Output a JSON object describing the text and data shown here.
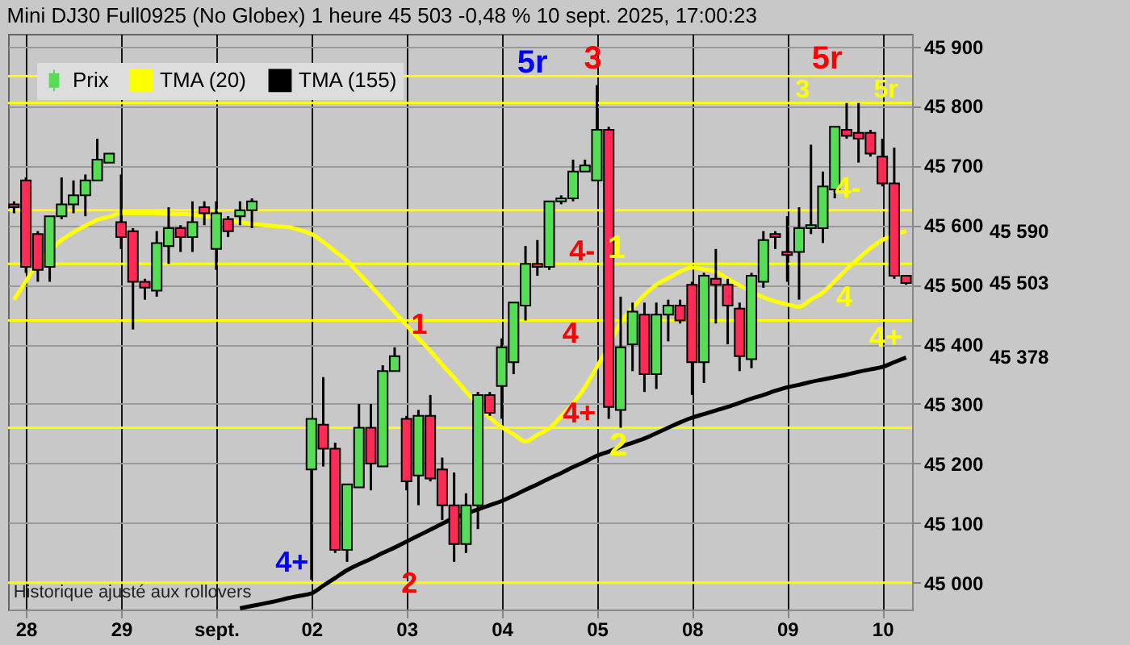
{
  "chart_data": {
    "type": "candlestick",
    "title": "Mini DJ30 Full0925 (No Globex) 1 heure 45 503 -0,48 % 10 sept. 2025, 17:00:23",
    "categories": [
      null,
      "28",
      null,
      null,
      null,
      null,
      null,
      null,
      null,
      "29",
      null,
      null,
      null,
      null,
      null,
      null,
      null,
      "sept.",
      null,
      null,
      null,
      null,
      null,
      null,
      null,
      "02",
      null,
      null,
      null,
      null,
      null,
      null,
      null,
      "03",
      null,
      null,
      null,
      null,
      null,
      null,
      null,
      "04",
      null,
      null,
      null,
      null,
      null,
      null,
      null,
      "05",
      null,
      null,
      null,
      null,
      null,
      null,
      null,
      "08",
      null,
      null,
      null,
      null,
      null,
      null,
      null,
      "09",
      null,
      null,
      null,
      null,
      null,
      null,
      null,
      "10",
      null,
      null
    ],
    "ylim": [
      44955,
      45921
    ],
    "yticks": [
      {
        "value": 45000,
        "label": "45 000"
      },
      {
        "value": 45100,
        "label": "45 100"
      },
      {
        "value": 45200,
        "label": "45 200"
      },
      {
        "value": 45300,
        "label": "45 300"
      },
      {
        "value": 45400,
        "label": "45 400"
      },
      {
        "value": 45500,
        "label": "45 500"
      },
      {
        "value": 45600,
        "label": "45 600"
      },
      {
        "value": 45700,
        "label": "45 700"
      },
      {
        "value": 45800,
        "label": "45 800"
      },
      {
        "value": 45900,
        "label": "45 900"
      }
    ],
    "grid": true,
    "legend": "top left",
    "series": [
      {
        "name": "Prix",
        "color": "#55dd55",
        "ohlc": [
          [
            45635,
            45640,
            45620,
            45630
          ],
          [
            45675,
            45680,
            45520,
            45530
          ],
          [
            45585,
            45590,
            45505,
            45525
          ],
          [
            45530,
            45615,
            45505,
            45615
          ],
          [
            45615,
            45680,
            45610,
            45635
          ],
          [
            45635,
            45675,
            45620,
            45650
          ],
          [
            45650,
            45685,
            45615,
            45675
          ],
          [
            45675,
            45745,
            45675,
            45710
          ],
          [
            45705,
            45720,
            45705,
            45720
          ],
          [
            45605,
            45685,
            45560,
            45580
          ],
          [
            45590,
            45595,
            45425,
            45505
          ],
          [
            45505,
            45510,
            45475,
            45495
          ],
          [
            45490,
            45590,
            45480,
            45570
          ],
          [
            45565,
            45630,
            45535,
            45595
          ],
          [
            45595,
            45600,
            45555,
            45580
          ],
          [
            45580,
            45640,
            45555,
            45605
          ],
          [
            45630,
            45640,
            45600,
            45620
          ],
          [
            45560,
            45640,
            45525,
            45620
          ],
          [
            45610,
            45615,
            45580,
            45590
          ],
          [
            45615,
            45640,
            45600,
            45625
          ],
          [
            45625,
            45645,
            45595,
            45640
          ],
          null,
          null,
          null,
          null,
          [
            45190,
            45275,
            45005,
            45275
          ],
          [
            45265,
            45345,
            45195,
            45225
          ],
          [
            45225,
            45235,
            45050,
            45055
          ],
          [
            45055,
            45165,
            45035,
            45165
          ],
          [
            45160,
            45300,
            45160,
            45260
          ],
          [
            45260,
            45300,
            45155,
            45200
          ],
          [
            45195,
            45365,
            45195,
            45355
          ],
          [
            45355,
            45395,
            45355,
            45380
          ],
          [
            45275,
            45280,
            45155,
            45170
          ],
          [
            45180,
            45290,
            45130,
            45280
          ],
          [
            45280,
            45315,
            45170,
            45175
          ],
          [
            45190,
            45210,
            45105,
            45130
          ],
          [
            45130,
            45185,
            45035,
            45065
          ],
          [
            45065,
            45150,
            45050,
            45130
          ],
          [
            45130,
            45320,
            45090,
            45315
          ],
          [
            45315,
            45320,
            45280,
            45285
          ],
          [
            45330,
            45410,
            45275,
            45395
          ],
          [
            45370,
            45470,
            45350,
            45470
          ],
          [
            45465,
            45565,
            45440,
            45535
          ],
          [
            45535,
            45575,
            45515,
            45530
          ],
          [
            45530,
            45640,
            45525,
            45640
          ],
          [
            45640,
            45650,
            45635,
            45645
          ],
          [
            45645,
            45710,
            45640,
            45690
          ],
          [
            45690,
            45710,
            45690,
            45700
          ],
          [
            45675,
            45835,
            45675,
            45760
          ],
          [
            45760,
            45765,
            45275,
            45295
          ],
          [
            45290,
            45480,
            45260,
            45395
          ],
          [
            45400,
            45470,
            45355,
            45455
          ],
          [
            45450,
            45470,
            45320,
            45350
          ],
          [
            45350,
            45470,
            45325,
            45450
          ],
          [
            45450,
            45475,
            45405,
            45465
          ],
          [
            45465,
            45475,
            45435,
            45440
          ],
          [
            45500,
            45505,
            45315,
            45370
          ],
          [
            45370,
            45520,
            45335,
            45515
          ],
          [
            45510,
            45560,
            45435,
            45500
          ],
          [
            45500,
            45510,
            45400,
            45465
          ],
          [
            45460,
            45470,
            45355,
            45380
          ],
          [
            45375,
            45520,
            45360,
            45515
          ],
          [
            45505,
            45590,
            45495,
            45575
          ],
          [
            45585,
            45590,
            45560,
            45580
          ],
          [
            45555,
            45615,
            45505,
            45550
          ],
          [
            45555,
            45630,
            45475,
            45595
          ],
          [
            45595,
            45735,
            45585,
            45600
          ],
          [
            45595,
            45690,
            45570,
            45665
          ],
          [
            45660,
            45765,
            45645,
            45765
          ],
          [
            45760,
            45805,
            45745,
            45750
          ],
          [
            45755,
            45805,
            45705,
            45745
          ],
          [
            45755,
            45760,
            45715,
            45720
          ],
          [
            45715,
            45745,
            45665,
            45670
          ],
          [
            45670,
            45730,
            45510,
            45515
          ],
          [
            45515,
            45515,
            45500,
            45503
          ]
        ],
        "colors": [
          "#ff2a55",
          "#ff2a55",
          "#ff2a55",
          "#55dd55",
          "#55dd55",
          "#55dd55",
          "#55dd55",
          "#55dd55",
          "#55dd55",
          "#ff2a55",
          "#ff2a55",
          "#ff2a55",
          "#55dd55",
          "#55dd55",
          "#ff2a55",
          "#55dd55",
          "#ff2a55",
          "#55dd55",
          "#ff2a55",
          "#55dd55",
          "#55dd55",
          null,
          null,
          null,
          null,
          "#55dd55",
          "#ff2a55",
          "#ff2a55",
          "#55dd55",
          "#55dd55",
          "#ff2a55",
          "#55dd55",
          "#55dd55",
          "#ff2a55",
          "#55dd55",
          "#ff2a55",
          "#ff2a55",
          "#ff2a55",
          "#55dd55",
          "#55dd55",
          "#ff2a55",
          "#55dd55",
          "#55dd55",
          "#55dd55",
          "#ff2a55",
          "#55dd55",
          "#55dd55",
          "#55dd55",
          "#55dd55",
          "#55dd55",
          "#ff2a55",
          "#55dd55",
          "#55dd55",
          "#ff2a55",
          "#55dd55",
          "#55dd55",
          "#ff2a55",
          "#ff2a55",
          "#55dd55",
          "#ff2a55",
          "#ff2a55",
          "#ff2a55",
          "#55dd55",
          "#55dd55",
          "#ff2a55",
          "#ff2a55",
          "#55dd55",
          "#55dd55",
          "#55dd55",
          "#55dd55",
          "#ff2a55",
          "#ff2a55",
          "#ff2a55",
          "#ff2a55",
          "#ff2a55",
          "#ff2a55"
        ]
      },
      {
        "name": "TMA (20)",
        "type": "line",
        "color": "#ffff00",
        "values": [
          45475,
          45506,
          45537,
          45557,
          45575,
          45588,
          45599,
          45609,
          45614,
          45620,
          45620,
          45620,
          45620,
          45619,
          45619,
          45618,
          45615,
          45612,
          45608,
          45605,
          45602,
          45600,
          45598,
          45597,
          45592,
          45585,
          45572,
          45556,
          45540,
          45519,
          45498,
          45476,
          45454,
          45432,
          45410,
          45389,
          45366,
          45344,
          45321,
          45299,
          45277,
          45261,
          45249,
          45237,
          45248,
          45259,
          45279,
          45301,
          45328,
          45362,
          45398,
          45436,
          45461,
          45483,
          45500,
          45511,
          45522,
          45529,
          45526,
          45522,
          45510,
          45499,
          45488,
          45479,
          45472,
          45467,
          45463,
          45475,
          45487,
          45506,
          45526,
          45544,
          45561,
          45575,
          45583,
          45590
        ]
      },
      {
        "name": "TMA (155)",
        "type": "line",
        "color": "#000000",
        "values": [
          null,
          null,
          null,
          null,
          null,
          null,
          null,
          null,
          null,
          null,
          null,
          null,
          null,
          null,
          null,
          null,
          null,
          null,
          null,
          44957,
          44961,
          44965,
          44969,
          44974,
          44978,
          44982,
          44995,
          45008,
          45021,
          45031,
          45040,
          45050,
          45059,
          45069,
          45079,
          45089,
          45099,
          45109,
          45116,
          45123,
          45130,
          45137,
          45146,
          45156,
          45165,
          45175,
          45184,
          45194,
          45203,
          45213,
          45220,
          45228,
          45235,
          45242,
          45251,
          45260,
          45269,
          45277,
          45283,
          45289,
          45295,
          45302,
          45309,
          45315,
          45322,
          45328,
          45332,
          45337,
          45341,
          45345,
          45349,
          45354,
          45358,
          45362,
          45370,
          45378
        ]
      }
    ],
    "ref_lines": [
      {
        "axis": "y",
        "value": 45850,
        "color": "#ffff00"
      },
      {
        "axis": "y",
        "value": 45805,
        "color": "#ffff00"
      },
      {
        "axis": "y",
        "value": 45625,
        "color": "#ffff00"
      },
      {
        "axis": "y",
        "value": 45535,
        "color": "#ffff00"
      },
      {
        "axis": "y",
        "value": 45440,
        "color": "#ffff00"
      },
      {
        "axis": "y",
        "value": 45260,
        "color": "#ffff00"
      },
      {
        "axis": "y",
        "value": 45000,
        "color": "#ffff00"
      }
    ],
    "annotations": [
      "5r",
      "3",
      "4-",
      "1",
      "4",
      "4+",
      "2",
      "1",
      "2",
      "4+",
      "5r",
      "3",
      "5r",
      "4-",
      "4",
      "4+",
      "45 590",
      "45 503",
      "45 378",
      "Historique ajusté aux rollovers"
    ]
  }
}
